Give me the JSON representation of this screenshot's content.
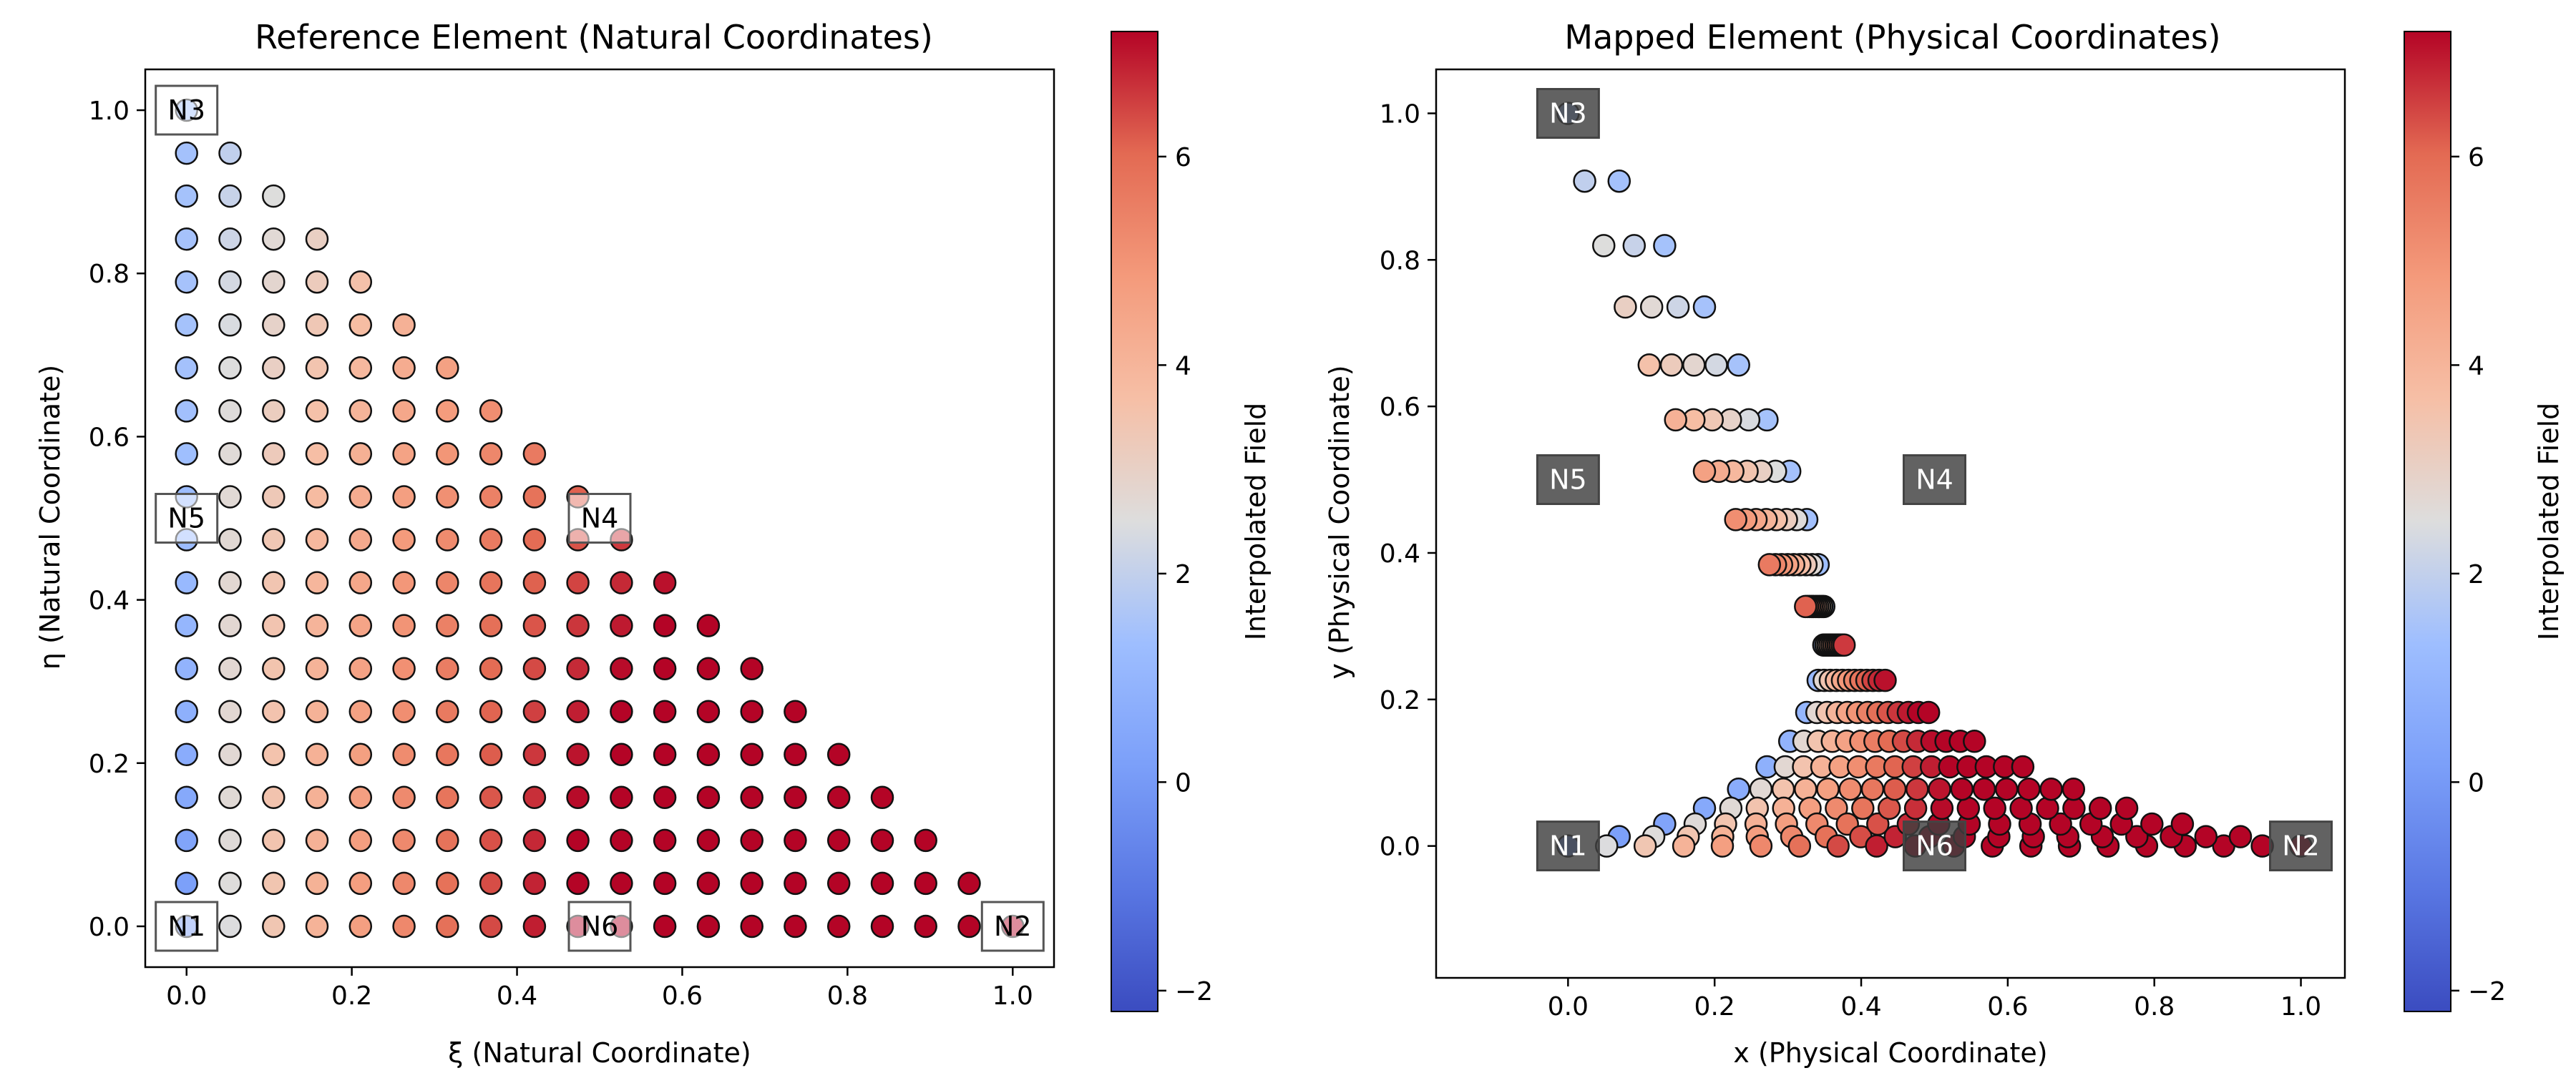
{
  "chart_data": [
    {
      "type": "scatter",
      "title": "Reference Element (Natural Coordinates)",
      "xlabel": "ξ (Natural Coordinate)",
      "ylabel": "η (Natural Coordinate)",
      "xlim": [
        -0.05,
        1.05
      ],
      "ylim": [
        -0.05,
        1.05
      ],
      "xticks": [
        0.0,
        0.2,
        0.4,
        0.6,
        0.8,
        1.0
      ],
      "xtick_labels": [
        "0.0",
        "0.2",
        "0.4",
        "0.6",
        "0.8",
        "1.0"
      ],
      "yticks": [
        0.0,
        0.2,
        0.4,
        0.6,
        0.8,
        1.0
      ],
      "ytick_labels": [
        "0.0",
        "0.2",
        "0.4",
        "0.6",
        "0.8",
        "1.0"
      ],
      "points": "triangular grid: ξ = i/19, η = j/19 for i + j ≤ 19 (210 points), colored by interpolated field",
      "nodes": [
        {
          "label": "N1",
          "x": 0.0,
          "y": 0.0
        },
        {
          "label": "N2",
          "x": 1.0,
          "y": 0.0
        },
        {
          "label": "N3",
          "x": 0.0,
          "y": 1.0
        },
        {
          "label": "N4",
          "x": 0.5,
          "y": 0.5
        },
        {
          "label": "N5",
          "x": 0.0,
          "y": 0.5
        },
        {
          "label": "N6",
          "x": 0.5,
          "y": 0.0
        }
      ],
      "colorbar": {
        "label": "Interpolated Field",
        "range": [
          -2.2,
          7.2
        ],
        "ticks": [
          -2,
          0,
          2,
          4,
          6
        ],
        "tick_labels": [
          "−2",
          "0",
          "2",
          "4",
          "6"
        ],
        "colormap": "coolwarm"
      },
      "grid": false
    },
    {
      "type": "scatter",
      "title": "Mapped Element (Physical Coordinates)",
      "xlabel": "x (Physical Coordinate)",
      "ylabel": "y (Physical Coordinate)",
      "xlim": [
        -0.18,
        1.06
      ],
      "ylim": [
        -0.18,
        1.06
      ],
      "xticks": [
        0.0,
        0.2,
        0.4,
        0.6,
        0.8,
        1.0
      ],
      "xtick_labels": [
        "0.0",
        "0.2",
        "0.4",
        "0.6",
        "0.8",
        "1.0"
      ],
      "yticks": [
        0.0,
        0.2,
        0.4,
        0.6,
        0.8,
        1.0
      ],
      "ytick_labels": [
        "0.0",
        "0.2",
        "0.4",
        "0.6",
        "0.8",
        "1.0"
      ],
      "points": "same 210 grid points mapped through a quadratic 6-node triangle with mid-side nodes N4 and N5 displaced toward the element interior",
      "nodes": [
        {
          "label": "N1",
          "x": 0.0,
          "y": 0.0
        },
        {
          "label": "N2",
          "x": 1.0,
          "y": 0.0
        },
        {
          "label": "N3",
          "x": 0.0,
          "y": 1.0
        },
        {
          "label": "N4",
          "x": 0.5,
          "y": 0.5
        },
        {
          "label": "N5",
          "x": 0.0,
          "y": 0.5
        },
        {
          "label": "N6",
          "x": 0.5,
          "y": 0.0
        }
      ],
      "colorbar": {
        "label": "Interpolated Field",
        "range": [
          -2.2,
          7.2
        ],
        "ticks": [
          -2,
          0,
          2,
          4,
          6
        ],
        "tick_labels": [
          "−2",
          "0",
          "2",
          "4",
          "6"
        ],
        "colormap": "coolwarm"
      },
      "grid": false
    }
  ]
}
